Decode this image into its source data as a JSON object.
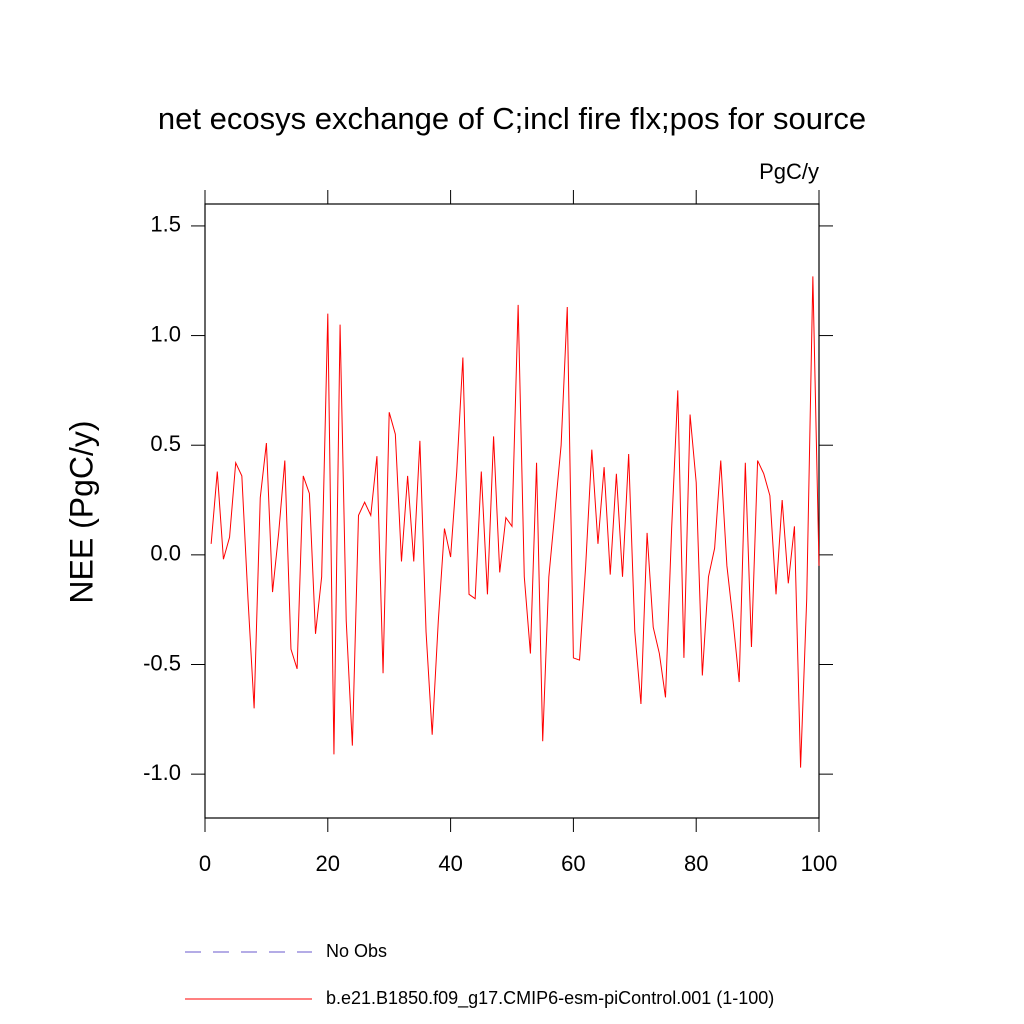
{
  "chart_data": {
    "type": "line",
    "title": "net ecosys exchange of C;incl fire flx;pos for source",
    "units": "PgC/y",
    "y_label": "NEE  (PgC/y)",
    "x": [
      1,
      2,
      3,
      4,
      5,
      6,
      7,
      8,
      9,
      10,
      11,
      12,
      13,
      14,
      15,
      16,
      17,
      18,
      19,
      20,
      21,
      22,
      23,
      24,
      25,
      26,
      27,
      28,
      29,
      30,
      31,
      32,
      33,
      34,
      35,
      36,
      37,
      38,
      39,
      40,
      41,
      42,
      43,
      44,
      45,
      46,
      47,
      48,
      49,
      50,
      51,
      52,
      53,
      54,
      55,
      56,
      57,
      58,
      59,
      60,
      61,
      62,
      63,
      64,
      65,
      66,
      67,
      68,
      69,
      70,
      71,
      72,
      73,
      74,
      75,
      76,
      77,
      78,
      79,
      80,
      81,
      82,
      83,
      84,
      85,
      86,
      87,
      88,
      89,
      90,
      91,
      92,
      93,
      94,
      95,
      96,
      97,
      98,
      99,
      100
    ],
    "series": [
      {
        "name": "No Obs",
        "color": "#6a5acd",
        "dashed": true,
        "values": null
      },
      {
        "name": "b.e21.B1850.f09_g17.CMIP6-esm-piControl.001 (1-100)",
        "color": "#ff0000",
        "values": [
          0.05,
          0.38,
          -0.02,
          0.08,
          0.42,
          0.36,
          -0.2,
          -0.7,
          0.26,
          0.51,
          -0.17,
          0.1,
          0.43,
          -0.43,
          -0.52,
          0.36,
          0.28,
          -0.36,
          -0.1,
          1.1,
          -0.91,
          1.05,
          -0.3,
          -0.87,
          0.18,
          0.24,
          0.18,
          0.45,
          -0.54,
          0.65,
          0.55,
          -0.03,
          0.36,
          -0.03,
          0.52,
          -0.35,
          -0.82,
          -0.3,
          0.12,
          -0.01,
          0.38,
          0.9,
          -0.18,
          -0.2,
          0.38,
          -0.18,
          0.54,
          -0.08,
          0.17,
          0.13,
          1.14,
          -0.1,
          -0.45,
          0.42,
          -0.85,
          -0.1,
          0.2,
          0.5,
          1.13,
          -0.47,
          -0.48,
          -0.05,
          0.48,
          0.05,
          0.4,
          -0.09,
          0.37,
          -0.1,
          0.46,
          -0.35,
          -0.68,
          0.1,
          -0.33,
          -0.45,
          -0.65,
          0.12,
          0.75,
          -0.47,
          0.64,
          0.33,
          -0.55,
          -0.1,
          0.03,
          0.43,
          -0.05,
          -0.3,
          -0.58,
          0.42,
          -0.42,
          0.43,
          0.37,
          0.27,
          -0.18,
          0.25,
          -0.13,
          0.13,
          -0.97,
          -0.2,
          1.27,
          -0.05
        ]
      }
    ],
    "xlim": [
      0,
      100
    ],
    "xticks": [
      0,
      20,
      40,
      60,
      80,
      100
    ],
    "ylim": [
      -1.2,
      1.6
    ],
    "yticks": [
      {
        "value": -1.0,
        "label": "-1.0"
      },
      -0.5,
      {
        "value": 0.0,
        "label": "0.0"
      },
      0.5,
      {
        "value": 1.0,
        "label": "1.0"
      },
      1.5
    ]
  }
}
